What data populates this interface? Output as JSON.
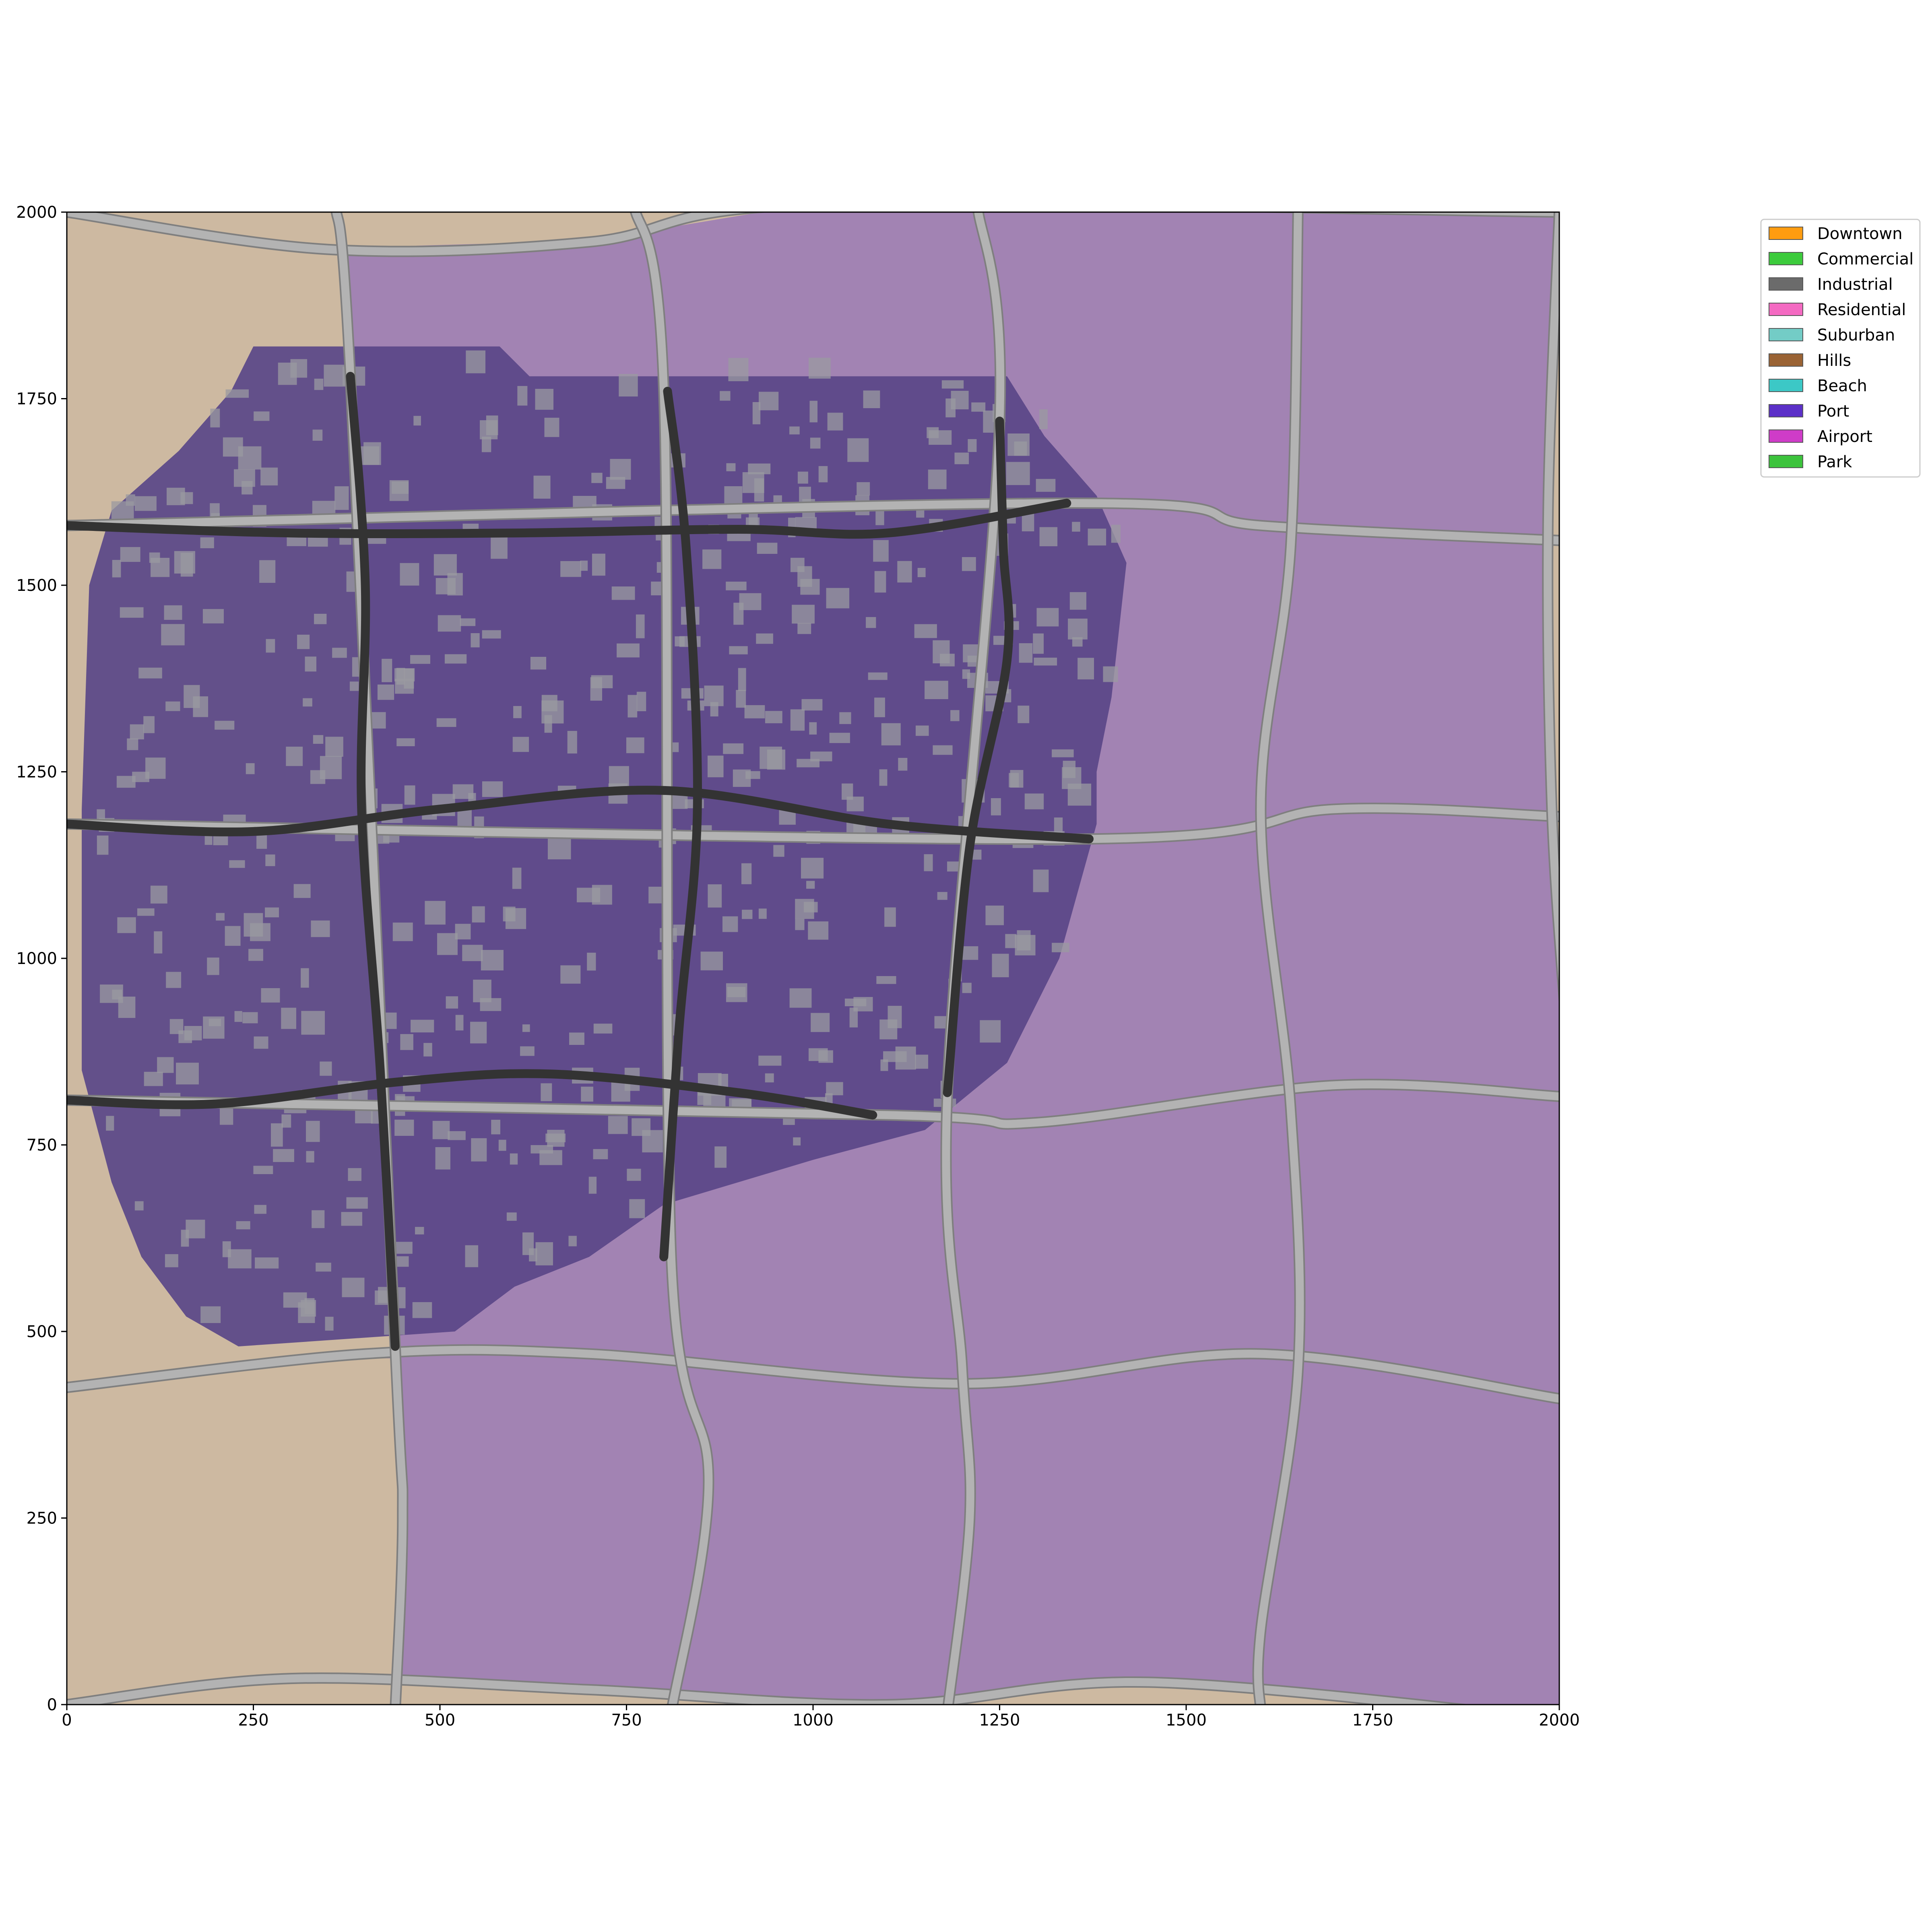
{
  "chart_data": {
    "type": "map",
    "title": "",
    "xlabel": "",
    "ylabel": "",
    "xlim": [
      0,
      2000
    ],
    "ylim": [
      0,
      2000
    ],
    "x_ticks": [
      0,
      250,
      500,
      750,
      1000,
      1250,
      1500,
      1750,
      2000
    ],
    "y_ticks": [
      0,
      250,
      500,
      750,
      1000,
      1250,
      1500,
      1750,
      2000
    ],
    "grid": false,
    "legend_position": "outside-top-right",
    "colors": {
      "terrain": "#cdb9a1",
      "land_block": "#a283b3",
      "downtown_area": "#5a4788",
      "building": "#9a9aa0",
      "major_road": "#333333",
      "minor_road": "#b3b3b3",
      "minor_road_edge": "#7f7f7f"
    },
    "legend": [
      {
        "label": "Downtown",
        "color": "#ff9c10"
      },
      {
        "label": "Commercial",
        "color": "#3ccb3c"
      },
      {
        "label": "Industrial",
        "color": "#6b6b6b"
      },
      {
        "label": "Residential",
        "color": "#f46ac2"
      },
      {
        "label": "Suburban",
        "color": "#73ccc6"
      },
      {
        "label": "Hills",
        "color": "#9a6334"
      },
      {
        "label": "Beach",
        "color": "#3cc8c6"
      },
      {
        "label": "Port",
        "color": "#5c30c8"
      },
      {
        "label": "Airport",
        "color": "#cf3cc8"
      },
      {
        "label": "Park",
        "color": "#3cc33c"
      }
    ],
    "minor_roads": [
      {
        "axis": "h",
        "points": [
          [
            0,
            2000
          ],
          [
            350,
            1950
          ],
          [
            700,
            1960
          ],
          [
            1000,
            2010
          ],
          [
            2000,
            2000
          ]
        ]
      },
      {
        "axis": "h",
        "points": [
          [
            0,
            1580
          ],
          [
            1350,
            1610
          ],
          [
            1600,
            1580
          ],
          [
            2000,
            1560
          ]
        ]
      },
      {
        "axis": "h",
        "points": [
          [
            0,
            1180
          ],
          [
            1370,
            1160
          ],
          [
            1700,
            1200
          ],
          [
            2000,
            1190
          ]
        ]
      },
      {
        "axis": "h",
        "points": [
          [
            0,
            810
          ],
          [
            1100,
            790
          ],
          [
            1300,
            780
          ],
          [
            1700,
            830
          ],
          [
            2000,
            815
          ]
        ]
      },
      {
        "axis": "h",
        "points": [
          [
            0,
            425
          ],
          [
            400,
            470
          ],
          [
            700,
            470
          ],
          [
            1200,
            430
          ],
          [
            1600,
            470
          ],
          [
            2000,
            410
          ]
        ]
      },
      {
        "axis": "h",
        "points": [
          [
            0,
            0
          ],
          [
            300,
            35
          ],
          [
            700,
            20
          ],
          [
            1100,
            0
          ],
          [
            1450,
            30
          ],
          [
            2000,
            -20
          ]
        ]
      },
      {
        "axis": "v",
        "points": [
          [
            360,
            2010
          ],
          [
            380,
            1780
          ],
          [
            440,
            480
          ],
          [
            450,
            250
          ],
          [
            440,
            -10
          ]
        ]
      },
      {
        "axis": "v",
        "points": [
          [
            760,
            2010
          ],
          [
            800,
            1760
          ],
          [
            810,
            600
          ],
          [
            860,
            300
          ],
          [
            810,
            -10
          ]
        ]
      },
      {
        "axis": "v",
        "points": [
          [
            1220,
            2010
          ],
          [
            1250,
            1720
          ],
          [
            1180,
            820
          ],
          [
            1200,
            450
          ],
          [
            1210,
            250
          ],
          [
            1180,
            -10
          ]
        ]
      },
      {
        "axis": "v",
        "points": [
          [
            1650,
            2010
          ],
          [
            1640,
            1550
          ],
          [
            1600,
            1200
          ],
          [
            1640,
            800
          ],
          [
            1650,
            450
          ],
          [
            1600,
            100
          ],
          [
            1600,
            -10
          ]
        ]
      },
      {
        "axis": "v",
        "points": [
          [
            2000,
            2000
          ],
          [
            1985,
            1600
          ],
          [
            1990,
            1200
          ],
          [
            2010,
            900
          ]
        ]
      }
    ],
    "major_roads": [
      {
        "axis": "h",
        "points": [
          [
            0,
            1580
          ],
          [
            300,
            1570
          ],
          [
            600,
            1570
          ],
          [
            900,
            1575
          ],
          [
            1100,
            1570
          ],
          [
            1340,
            1610
          ]
        ]
      },
      {
        "axis": "h",
        "points": [
          [
            0,
            1180
          ],
          [
            250,
            1170
          ],
          [
            500,
            1200
          ],
          [
            800,
            1225
          ],
          [
            1100,
            1180
          ],
          [
            1370,
            1160
          ]
        ]
      },
      {
        "axis": "h",
        "points": [
          [
            0,
            810
          ],
          [
            200,
            805
          ],
          [
            450,
            835
          ],
          [
            650,
            845
          ],
          [
            900,
            820
          ],
          [
            1080,
            790
          ]
        ]
      },
      {
        "axis": "v",
        "points": [
          [
            380,
            1780
          ],
          [
            400,
            1500
          ],
          [
            395,
            1200
          ],
          [
            420,
            850
          ],
          [
            440,
            480
          ]
        ]
      },
      {
        "axis": "v",
        "points": [
          [
            805,
            1760
          ],
          [
            830,
            1550
          ],
          [
            845,
            1200
          ],
          [
            820,
            900
          ],
          [
            800,
            600
          ]
        ]
      },
      {
        "axis": "v",
        "points": [
          [
            1250,
            1720
          ],
          [
            1255,
            1550
          ],
          [
            1260,
            1400
          ],
          [
            1210,
            1150
          ],
          [
            1180,
            820
          ]
        ]
      }
    ],
    "downtown_region": [
      [
        250,
        1820
      ],
      [
        580,
        1820
      ],
      [
        620,
        1780
      ],
      [
        1260,
        1780
      ],
      [
        1310,
        1700
      ],
      [
        1380,
        1620
      ],
      [
        1420,
        1530
      ],
      [
        1400,
        1350
      ],
      [
        1380,
        1250
      ],
      [
        1380,
        1180
      ],
      [
        1330,
        1000
      ],
      [
        1260,
        860
      ],
      [
        1150,
        770
      ],
      [
        1000,
        730
      ],
      [
        800,
        670
      ],
      [
        700,
        600
      ],
      [
        600,
        560
      ],
      [
        520,
        500
      ],
      [
        230,
        480
      ],
      [
        160,
        520
      ],
      [
        100,
        600
      ],
      [
        60,
        700
      ],
      [
        20,
        850
      ],
      [
        20,
        1200
      ],
      [
        30,
        1500
      ],
      [
        60,
        1600
      ],
      [
        150,
        1680
      ],
      [
        220,
        1760
      ]
    ]
  }
}
